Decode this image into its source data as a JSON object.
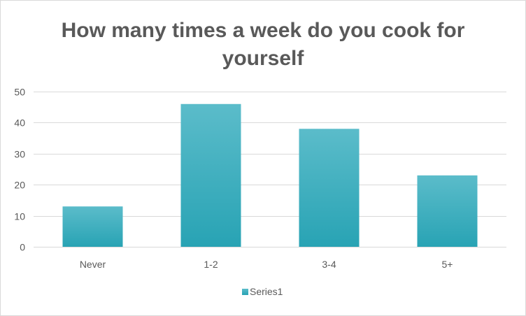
{
  "chart_data": {
    "type": "bar",
    "title_lines": [
      "How many times a week do you cook for",
      "yourself"
    ],
    "categories": [
      "Never",
      "1-2",
      "3-4",
      "5+"
    ],
    "series": [
      {
        "name": "Series1",
        "values": [
          13,
          46,
          38,
          23
        ]
      }
    ],
    "ylim": [
      0,
      50
    ],
    "yticks": [
      0,
      10,
      20,
      30,
      40,
      50
    ],
    "grid": true,
    "legend_position": "bottom",
    "colors": {
      "bar_top": "#5bbcca",
      "bar_bottom": "#28a3b4",
      "grid": "#d9d9d9",
      "text": "#595959"
    }
  }
}
